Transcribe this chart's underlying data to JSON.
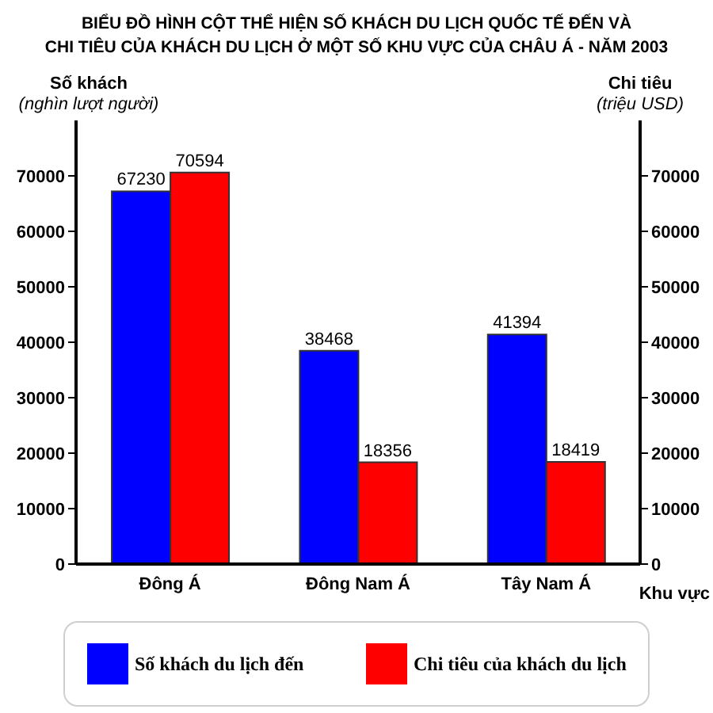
{
  "chart_data": {
    "type": "bar",
    "title": "BIỂU ĐỒ HÌNH CỘT THỂ HIỆN SỐ KHÁCH DU LỊCH QUỐC TẾ ĐẾN VÀ\nCHI TIÊU CỦA KHÁCH DU LỊCH Ở MỘT SỐ KHU VỰC CỦA CHÂU Á - NĂM 2003",
    "xlabel": "Khu vực",
    "ylabel": "Số khách\n(nghìn lượt người)",
    "y2label": "Chi tiêu\n(triệu USD)",
    "categories": [
      "Đông Á",
      "Đông Nam Á",
      "Tây Nam Á"
    ],
    "series": [
      {
        "name": "Số khách du lịch đến",
        "color": "#0000ff",
        "values": [
          67230,
          38468,
          41394
        ]
      },
      {
        "name": "Chi tiêu của khách du lịch",
        "color": "#ff0000",
        "values": [
          70594,
          18356,
          18419
        ],
        "axis": "y2"
      }
    ],
    "ylim": [
      0,
      80000
    ],
    "yticks": [
      0,
      10000,
      20000,
      30000,
      40000,
      50000,
      60000,
      70000
    ],
    "y2lim": [
      0,
      80000
    ],
    "y2ticks": [
      0,
      10000,
      20000,
      30000,
      40000,
      50000,
      60000,
      70000
    ],
    "data_labels": true,
    "grid": false,
    "legend": "bottom"
  }
}
